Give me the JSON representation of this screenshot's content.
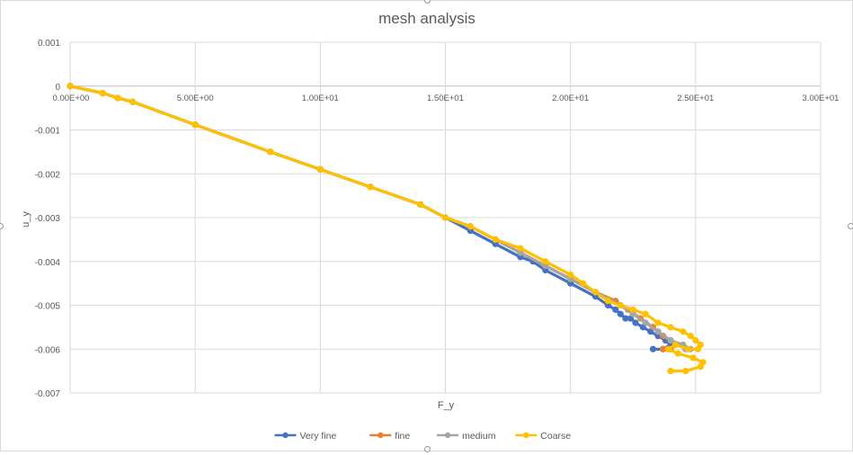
{
  "chart_data": {
    "type": "scatter",
    "title": "mesh analysis",
    "xlabel": "F_y",
    "ylabel": "u_y",
    "xlim": [
      0,
      30
    ],
    "ylim": [
      -0.007,
      0.001
    ],
    "x_ticks": [
      "0.00E+00",
      "5.00E+00",
      "1.00E+01",
      "1.50E+01",
      "2.00E+01",
      "2.50E+01",
      "3.00E+01"
    ],
    "x_tick_values": [
      0,
      5,
      10,
      15,
      20,
      25,
      30
    ],
    "y_ticks": [
      "0.001",
      "0",
      "-0.001",
      "-0.002",
      "-0.003",
      "-0.004",
      "-0.005",
      "-0.006",
      "-0.007"
    ],
    "y_tick_values": [
      0.001,
      0,
      -0.001,
      -0.002,
      -0.003,
      -0.004,
      -0.005,
      -0.006,
      -0.007
    ],
    "grid": true,
    "legend_position": "bottom",
    "series": [
      {
        "name": "Very fine",
        "color": "#4472c4",
        "x": [
          0,
          1.3,
          1.9,
          2.5,
          5,
          8,
          10,
          12,
          14,
          15,
          16,
          17,
          18,
          18.5,
          19,
          20,
          21,
          21.5,
          21.8,
          22,
          22.2,
          22.4,
          22.6,
          22.9,
          23.2,
          23.5,
          23.8,
          24,
          23.7,
          23.3
        ],
        "y": [
          0,
          -0.00016,
          -0.00027,
          -0.00036,
          -0.00088,
          -0.0015,
          -0.0019,
          -0.0023,
          -0.0027,
          -0.003,
          -0.0033,
          -0.0036,
          -0.0039,
          -0.004,
          -0.0042,
          -0.0045,
          -0.0048,
          -0.005,
          -0.0051,
          -0.0052,
          -0.0053,
          -0.0053,
          -0.0054,
          -0.0055,
          -0.0056,
          -0.0057,
          -0.0058,
          -0.0059,
          -0.006,
          -0.006
        ]
      },
      {
        "name": "fine",
        "color": "#ed7d31",
        "x": [
          0,
          1.3,
          1.9,
          2.5,
          5,
          8,
          10,
          12,
          14,
          15,
          16,
          17,
          18,
          19,
          20,
          21,
          21.8,
          22.3,
          22.8,
          23.3,
          23.7,
          24,
          24.2,
          24,
          23.7
        ],
        "y": [
          0,
          -0.00016,
          -0.00027,
          -0.00036,
          -0.00088,
          -0.0015,
          -0.0019,
          -0.0023,
          -0.0027,
          -0.003,
          -0.0032,
          -0.0035,
          -0.0038,
          -0.0041,
          -0.0044,
          -0.0047,
          -0.0049,
          -0.0051,
          -0.0053,
          -0.0055,
          -0.0057,
          -0.0058,
          -0.0059,
          -0.006,
          -0.006
        ]
      },
      {
        "name": "medium",
        "color": "#a5a5a5",
        "x": [
          0,
          1.3,
          1.9,
          2.5,
          5,
          8,
          10,
          12,
          14,
          15,
          16,
          17,
          18,
          19,
          20,
          21,
          22,
          22.5,
          23,
          23.5,
          24,
          24.5,
          24.8,
          24.6
        ],
        "y": [
          0,
          -0.00016,
          -0.00027,
          -0.00036,
          -0.00088,
          -0.0015,
          -0.0019,
          -0.0023,
          -0.0027,
          -0.003,
          -0.0032,
          -0.0035,
          -0.0038,
          -0.0041,
          -0.0044,
          -0.0047,
          -0.005,
          -0.0052,
          -0.0054,
          -0.0056,
          -0.0058,
          -0.0059,
          -0.006,
          -0.006
        ]
      },
      {
        "name": "Coarse",
        "color": "#ffc000",
        "x": [
          0,
          1.3,
          1.9,
          2.5,
          5,
          8,
          10,
          12,
          14,
          15,
          16,
          17,
          18,
          19,
          20,
          20.5,
          21,
          21.5,
          22,
          22.5,
          23,
          23.5,
          24,
          24.5,
          24.8,
          25,
          25.2,
          25.1,
          24.7,
          24.2,
          23.9,
          24.3,
          24.9,
          25.3,
          25.2,
          24.6,
          24.0
        ],
        "y": [
          0,
          -0.00016,
          -0.00027,
          -0.00036,
          -0.00088,
          -0.0015,
          -0.0019,
          -0.0023,
          -0.0027,
          -0.003,
          -0.0032,
          -0.0035,
          -0.0037,
          -0.004,
          -0.0043,
          -0.0045,
          -0.0047,
          -0.0049,
          -0.005,
          -0.0051,
          -0.0052,
          -0.0054,
          -0.0055,
          -0.0056,
          -0.0057,
          -0.0058,
          -0.0059,
          -0.006,
          -0.006,
          -0.0059,
          -0.006,
          -0.0061,
          -0.0062,
          -0.0063,
          -0.0064,
          -0.0065,
          -0.0065
        ]
      }
    ]
  }
}
